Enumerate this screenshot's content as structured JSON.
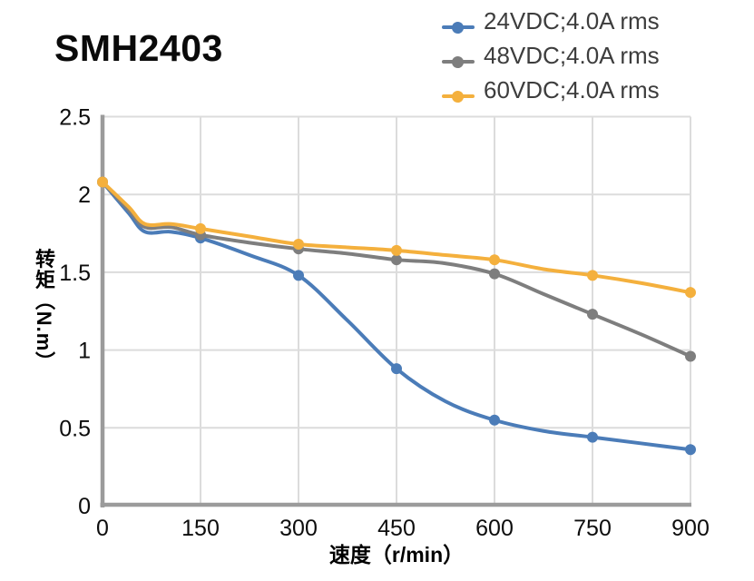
{
  "page_title": "SMH2403",
  "chart_data": {
    "type": "line",
    "title": "SMH2403",
    "xlabel": "速度（r/min）",
    "ylabel": "转矩（N.m）",
    "xlim": [
      0,
      900
    ],
    "ylim": [
      0,
      2.5
    ],
    "x_ticks": [
      0,
      150,
      300,
      450,
      600,
      750,
      900
    ],
    "y_ticks": [
      0,
      0.5,
      1,
      1.5,
      2,
      2.5
    ],
    "grid": true,
    "legend_position": "top-right",
    "colors": {
      "axis": "#9b9b9b",
      "grid": "#dcdcdc",
      "tick_text": "#0d0d0d",
      "legend_text": "#3d3d3d"
    },
    "marker_x": [
      0,
      150,
      300,
      450,
      600,
      750,
      900
    ],
    "series": [
      {
        "name": "24VDC;4.0A rms",
        "color": "#4b7cb8",
        "marker_values": [
          2.08,
          1.72,
          1.48,
          0.88,
          0.55,
          0.44,
          0.36
        ],
        "points": [
          [
            0,
            2.08
          ],
          [
            40,
            1.88
          ],
          [
            65,
            1.76
          ],
          [
            105,
            1.76
          ],
          [
            150,
            1.72
          ],
          [
            225,
            1.61
          ],
          [
            300,
            1.48
          ],
          [
            375,
            1.19
          ],
          [
            450,
            0.88
          ],
          [
            525,
            0.67
          ],
          [
            600,
            0.55
          ],
          [
            675,
            0.48
          ],
          [
            750,
            0.44
          ],
          [
            825,
            0.4
          ],
          [
            900,
            0.36
          ]
        ]
      },
      {
        "name": "48VDC;4.0A rms",
        "color": "#7e7e7e",
        "marker_values": [
          2.08,
          1.74,
          1.65,
          1.58,
          1.49,
          1.23,
          0.96
        ],
        "points": [
          [
            0,
            2.08
          ],
          [
            40,
            1.9
          ],
          [
            65,
            1.79
          ],
          [
            105,
            1.79
          ],
          [
            150,
            1.74
          ],
          [
            225,
            1.69
          ],
          [
            300,
            1.65
          ],
          [
            375,
            1.62
          ],
          [
            450,
            1.58
          ],
          [
            520,
            1.56
          ],
          [
            600,
            1.49
          ],
          [
            675,
            1.36
          ],
          [
            750,
            1.23
          ],
          [
            825,
            1.1
          ],
          [
            900,
            0.96
          ]
        ]
      },
      {
        "name": "60VDC;4.0A rms",
        "color": "#f4b03d",
        "marker_values": [
          2.08,
          1.78,
          1.68,
          1.64,
          1.58,
          1.48,
          1.37
        ],
        "points": [
          [
            0,
            2.08
          ],
          [
            40,
            1.92
          ],
          [
            65,
            1.81
          ],
          [
            105,
            1.81
          ],
          [
            150,
            1.78
          ],
          [
            225,
            1.73
          ],
          [
            300,
            1.68
          ],
          [
            375,
            1.66
          ],
          [
            450,
            1.64
          ],
          [
            525,
            1.61
          ],
          [
            600,
            1.58
          ],
          [
            675,
            1.52
          ],
          [
            750,
            1.48
          ],
          [
            825,
            1.43
          ],
          [
            900,
            1.37
          ]
        ]
      }
    ]
  }
}
